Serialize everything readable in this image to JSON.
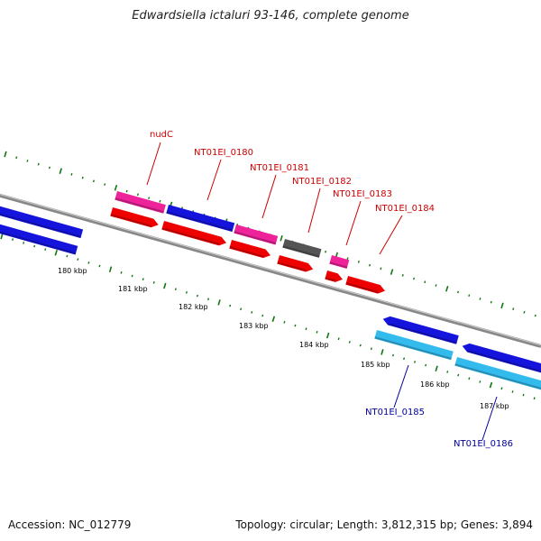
{
  "title": "Edwardsiella ictaluri 93-146, complete genome",
  "footer": {
    "accession": "Accession: NC_012779",
    "summary": "Topology: circular; Length: 3,812,315 bp; Genes: 3,894"
  },
  "colors": {
    "background": "#ffffff",
    "backbone": "#888888",
    "tick": "#117711",
    "cds_blue": "#1414dd",
    "cds_cyan": "#33bbee",
    "cds_red": "#ee0000",
    "cds_magenta": "#ee2299",
    "cds_gray": "#555555",
    "label_red": "#cc0000",
    "label_blue": "#000099"
  },
  "scale_labels": [
    "180 kbp",
    "181 kbp",
    "182 kbp",
    "183 kbp",
    "184 kbp",
    "185 kbp",
    "186 kbp",
    "187 kbp"
  ],
  "gene_labels": [
    {
      "id": "nudC",
      "text": "nudC",
      "color": "label_red"
    },
    {
      "id": "NT01EI_0180",
      "text": "NT01EI_0180",
      "color": "label_red"
    },
    {
      "id": "NT01EI_0181",
      "text": "NT01EI_0181",
      "color": "label_red"
    },
    {
      "id": "NT01EI_0182",
      "text": "NT01EI_0182",
      "color": "label_red"
    },
    {
      "id": "NT01EI_0183",
      "text": "NT01EI_0183",
      "color": "label_red"
    },
    {
      "id": "NT01EI_0184",
      "text": "NT01EI_0184",
      "color": "label_red"
    },
    {
      "id": "NT01EI_0185",
      "text": "NT01EI_0185",
      "color": "label_blue"
    },
    {
      "id": "NT01EI_0186",
      "text": "NT01EI_0186",
      "color": "label_blue"
    }
  ]
}
